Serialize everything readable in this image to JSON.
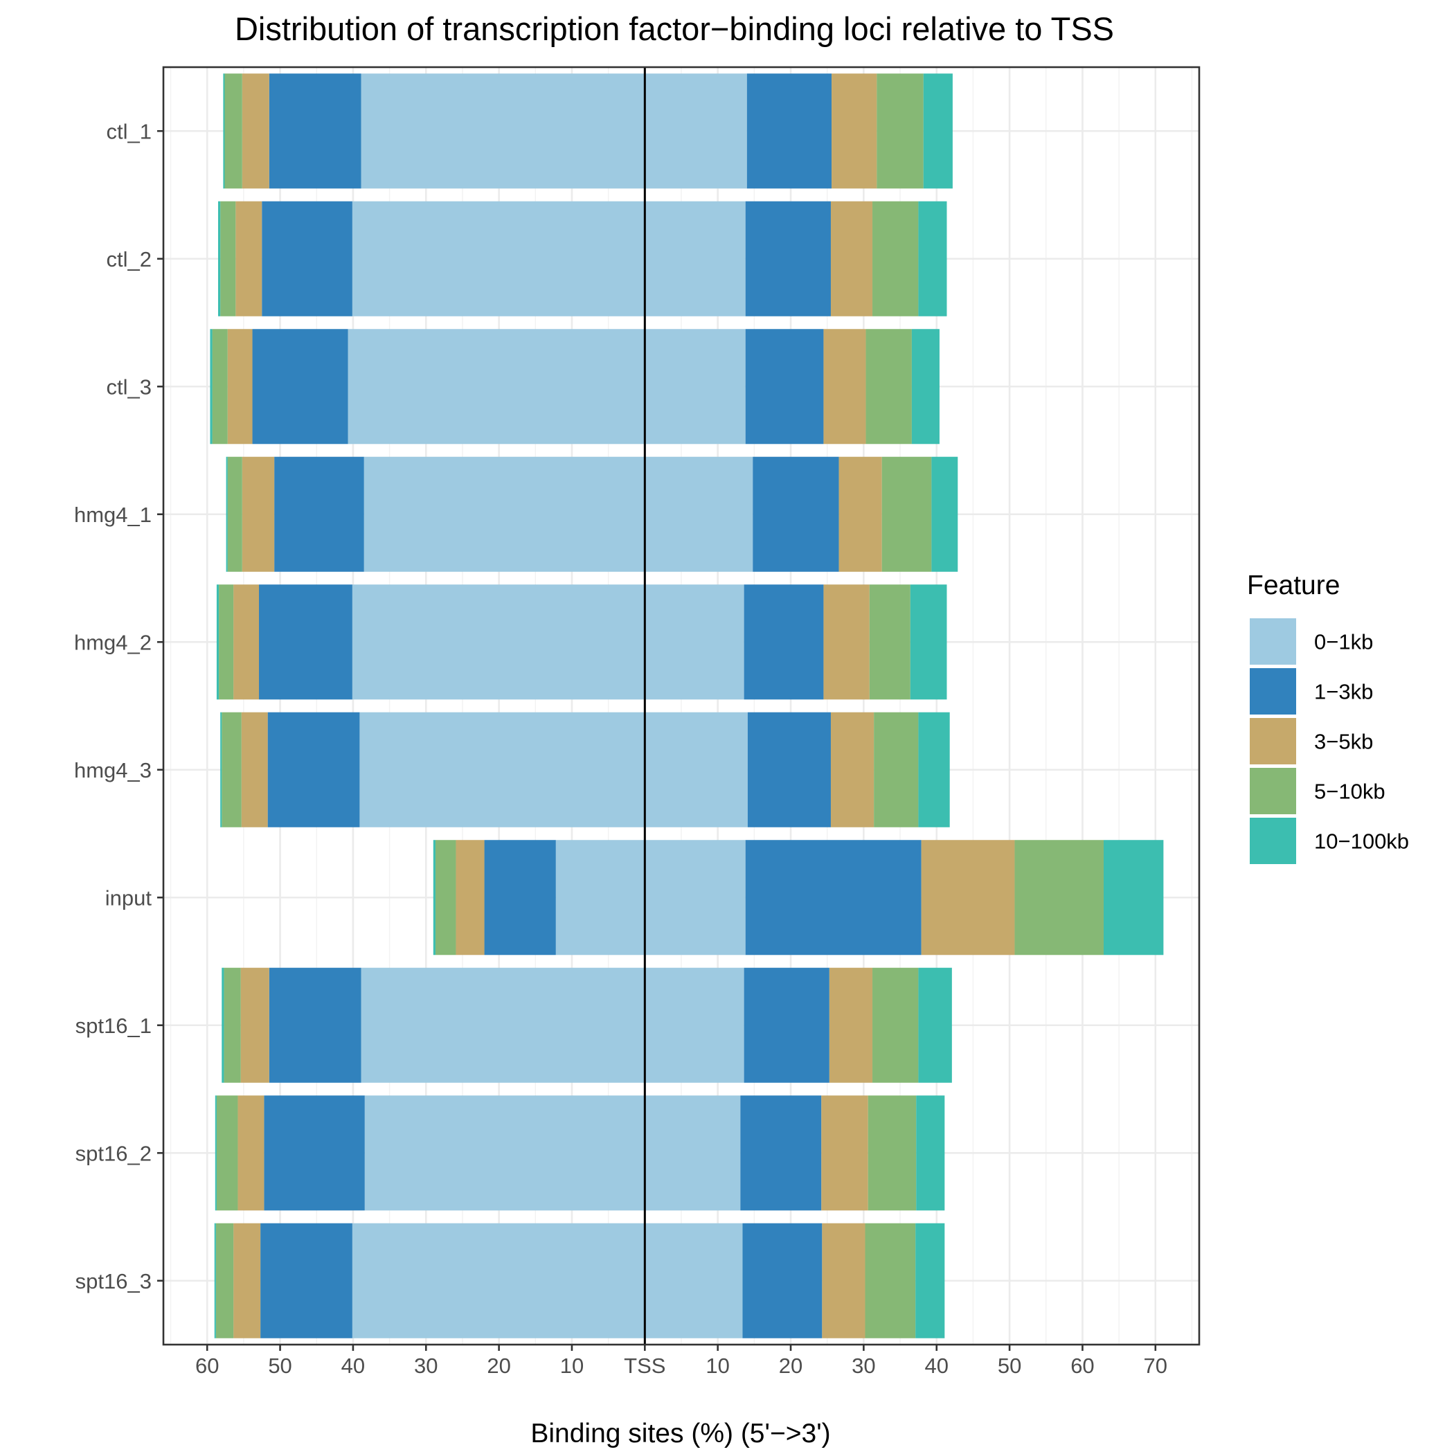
{
  "chart_data": {
    "type": "bar",
    "orientation": "horizontal",
    "layout": "diverging-stacked",
    "title": "Distribution of transcription factor−binding loci relative to TSS",
    "xlabel": "Binding sites (%) (5'−>3')",
    "ylabel": "",
    "center_label": "TSS",
    "xlim": [
      -66,
      76
    ],
    "x_tick_labels_left": [
      "60",
      "50",
      "40",
      "30",
      "20",
      "10"
    ],
    "x_tick_labels_right": [
      "10",
      "20",
      "30",
      "40",
      "50",
      "60",
      "70"
    ],
    "grid": true,
    "legend_position": "right",
    "legend_title": "Feature",
    "categories": [
      "ctl_1",
      "ctl_2",
      "ctl_3",
      "hmg4_1",
      "hmg4_2",
      "hmg4_3",
      "input",
      "spt16_1",
      "spt16_2",
      "spt16_3"
    ],
    "series": [
      {
        "name": "0−1kb",
        "color": "#9ECAE1",
        "upstream": [
          38.9,
          40.1,
          40.7,
          38.5,
          40.1,
          39.1,
          12.2,
          38.9,
          38.4,
          40.1
        ],
        "downstream": [
          14.0,
          13.8,
          13.8,
          14.8,
          13.6,
          14.1,
          13.8,
          13.6,
          13.1,
          13.4
        ]
      },
      {
        "name": "1−3kb",
        "color": "#3182BD",
        "upstream": [
          12.6,
          12.4,
          13.1,
          12.3,
          12.8,
          12.6,
          9.8,
          12.6,
          13.8,
          12.6
        ],
        "downstream": [
          11.6,
          11.7,
          10.7,
          11.8,
          10.9,
          11.4,
          24.1,
          11.7,
          11.1,
          10.9
        ]
      },
      {
        "name": "3−5kb",
        "color": "#C6A96B",
        "upstream": [
          3.7,
          3.6,
          3.4,
          4.4,
          3.5,
          3.6,
          3.9,
          3.9,
          3.6,
          3.7
        ],
        "downstream": [
          6.2,
          5.7,
          5.8,
          5.9,
          6.3,
          5.9,
          12.8,
          5.9,
          6.4,
          5.9
        ]
      },
      {
        "name": "5−10kb",
        "color": "#86B875",
        "upstream": [
          2.4,
          2.1,
          2.1,
          2.0,
          2.0,
          2.7,
          2.8,
          2.3,
          2.9,
          2.4
        ],
        "downstream": [
          6.4,
          6.3,
          6.3,
          6.8,
          5.6,
          6.1,
          12.2,
          6.3,
          6.6,
          6.9
        ]
      },
      {
        "name": "10−100kb",
        "color": "#3CBEB0",
        "upstream": [
          0.2,
          0.3,
          0.3,
          0.2,
          0.3,
          0.2,
          0.3,
          0.3,
          0.2,
          0.2
        ],
        "downstream": [
          4.0,
          3.9,
          3.8,
          3.6,
          5.0,
          4.3,
          8.2,
          4.6,
          3.9,
          4.0
        ]
      }
    ]
  }
}
